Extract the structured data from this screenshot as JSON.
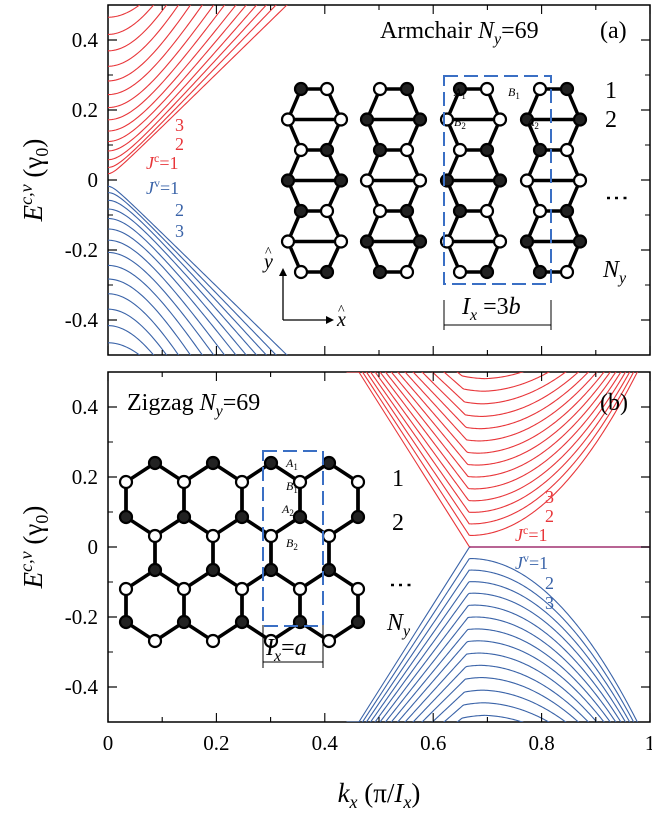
{
  "chart_data": [
    {
      "type": "line",
      "panel": "(a)",
      "title_words": "Armchair",
      "title_var": "N",
      "title_sub": "y",
      "title_value": "=69",
      "xlim": [
        0,
        1
      ],
      "ylim": [
        -0.5,
        0.5
      ],
      "x_ticks": [
        "0",
        "0.2",
        "0.4",
        "0.6",
        "0.8",
        "1"
      ],
      "y_ticks": [
        "0.4",
        "0.2",
        "0",
        "-0.2",
        "-0.4"
      ],
      "y_tick_values": [
        0.4,
        0.2,
        0,
        -0.2,
        -0.4
      ],
      "band_minima_at_kx0": [
        0.018,
        0.036,
        0.058,
        0.083,
        0.11,
        0.14,
        0.172,
        0.207,
        0.244,
        0.283,
        0.325,
        0.369,
        0.416,
        0.465
      ],
      "band_reaches_edge_at_kx": [
        0.33,
        0.31,
        0.292,
        0.274,
        0.255,
        0.236,
        0.215,
        0.195,
        0.174,
        0.152,
        0.13,
        0.108,
        0.084,
        0.058
      ],
      "conduction_labels": [
        "3",
        "2",
        "J^c=1"
      ],
      "valence_labels": [
        "J^v=1",
        "2",
        "3"
      ],
      "lattice_rows": [
        "1",
        "2",
        "⋮",
        "N_y"
      ],
      "sites": [
        "A_1",
        "B_1",
        "B_2",
        "A_2"
      ],
      "unit_cell": "I_x =3b",
      "axes_x": "x̂",
      "axes_y": "ŷ",
      "colors": {
        "conduction": "#e8363a",
        "valence": "#3a63a8",
        "unit_cell": "#3a6fc4"
      }
    },
    {
      "type": "line",
      "panel": "(b)",
      "title_words": "Zigzag",
      "title_var": "N",
      "title_sub": "y",
      "title_value": "=69",
      "xlim": [
        0,
        1
      ],
      "ylim": [
        -0.5,
        0.5
      ],
      "x_ticks": [
        "0",
        "0.2",
        "0.4",
        "0.6",
        "0.8",
        "1"
      ],
      "y_ticks": [
        "0.4",
        "0.2",
        "0",
        "-0.2",
        "-0.4"
      ],
      "y_tick_values": [
        0.4,
        0.2,
        0,
        -0.2,
        -0.4
      ],
      "band_kx0": 0.667,
      "band_minima": [
        0.0,
        0.033,
        0.066,
        0.099,
        0.132,
        0.166,
        0.2,
        0.234,
        0.268,
        0.303,
        0.338,
        0.373,
        0.409,
        0.445,
        0.481
      ],
      "conduction_labels": [
        "3",
        "2",
        "J^c=1"
      ],
      "valence_labels": [
        "J^v=1",
        "2",
        "3"
      ],
      "lattice_rows": [
        "1",
        "2",
        "⋮",
        "N_y"
      ],
      "sites": [
        "A_1",
        "B_1",
        "A_2",
        "B_2"
      ],
      "unit_cell": "I_x=a",
      "colors": {
        "conduction": "#e8363a",
        "valence": "#3a63a8",
        "unit_cell": "#3a6fc4"
      }
    }
  ],
  "ylabel": "E^{c,v} (γ_0)",
  "xlabel": "k_x (π/I_x)"
}
